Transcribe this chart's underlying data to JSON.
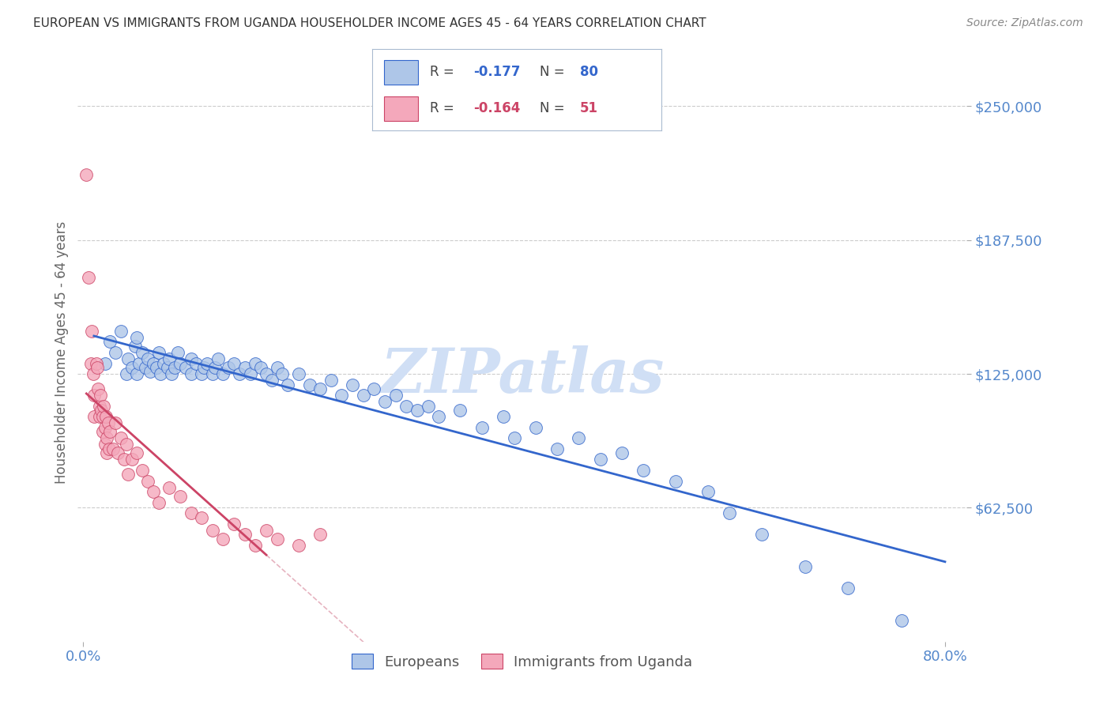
{
  "title": "EUROPEAN VS IMMIGRANTS FROM UGANDA HOUSEHOLDER INCOME AGES 45 - 64 YEARS CORRELATION CHART",
  "source": "Source: ZipAtlas.com",
  "ylabel": "Householder Income Ages 45 - 64 years",
  "ytick_labels": [
    "$62,500",
    "$125,000",
    "$187,500",
    "$250,000"
  ],
  "ytick_values": [
    62500,
    125000,
    187500,
    250000
  ],
  "ylim": [
    0,
    270000
  ],
  "xlim": [
    -0.005,
    0.82
  ],
  "legend_blue_R": "-0.177",
  "legend_blue_N": "80",
  "legend_pink_R": "-0.164",
  "legend_pink_N": "51",
  "blue_color": "#aec6e8",
  "pink_color": "#f4a8bb",
  "blue_line_color": "#3366cc",
  "pink_line_color": "#cc4466",
  "pink_dashed_color": "#e0a0b0",
  "watermark_color": "#d0dff5",
  "title_color": "#333333",
  "axis_label_color": "#5588cc",
  "ylabel_color": "#666666",
  "bg_color": "#ffffff",
  "grid_color": "#cccccc",
  "europeans_x": [
    0.02,
    0.025,
    0.03,
    0.035,
    0.04,
    0.042,
    0.045,
    0.048,
    0.05,
    0.05,
    0.052,
    0.055,
    0.058,
    0.06,
    0.062,
    0.065,
    0.068,
    0.07,
    0.072,
    0.075,
    0.078,
    0.08,
    0.082,
    0.085,
    0.088,
    0.09,
    0.095,
    0.1,
    0.1,
    0.105,
    0.11,
    0.112,
    0.115,
    0.12,
    0.122,
    0.125,
    0.13,
    0.135,
    0.14,
    0.145,
    0.15,
    0.155,
    0.16,
    0.165,
    0.17,
    0.175,
    0.18,
    0.185,
    0.19,
    0.2,
    0.21,
    0.22,
    0.23,
    0.24,
    0.25,
    0.26,
    0.27,
    0.28,
    0.29,
    0.3,
    0.31,
    0.32,
    0.33,
    0.35,
    0.37,
    0.39,
    0.4,
    0.42,
    0.44,
    0.46,
    0.48,
    0.5,
    0.52,
    0.55,
    0.58,
    0.6,
    0.63,
    0.67,
    0.71,
    0.76
  ],
  "europeans_y": [
    130000,
    140000,
    135000,
    145000,
    125000,
    132000,
    128000,
    138000,
    142000,
    125000,
    130000,
    135000,
    128000,
    132000,
    126000,
    130000,
    128000,
    135000,
    125000,
    130000,
    128000,
    132000,
    125000,
    128000,
    135000,
    130000,
    128000,
    132000,
    125000,
    130000,
    125000,
    128000,
    130000,
    125000,
    128000,
    132000,
    125000,
    128000,
    130000,
    125000,
    128000,
    125000,
    130000,
    128000,
    125000,
    122000,
    128000,
    125000,
    120000,
    125000,
    120000,
    118000,
    122000,
    115000,
    120000,
    115000,
    118000,
    112000,
    115000,
    110000,
    108000,
    110000,
    105000,
    108000,
    100000,
    105000,
    95000,
    100000,
    90000,
    95000,
    85000,
    88000,
    80000,
    75000,
    70000,
    60000,
    50000,
    35000,
    25000,
    10000
  ],
  "uganda_x": [
    0.003,
    0.005,
    0.007,
    0.008,
    0.009,
    0.01,
    0.01,
    0.012,
    0.013,
    0.014,
    0.015,
    0.015,
    0.016,
    0.017,
    0.018,
    0.018,
    0.019,
    0.02,
    0.02,
    0.021,
    0.022,
    0.022,
    0.023,
    0.024,
    0.025,
    0.028,
    0.03,
    0.032,
    0.035,
    0.038,
    0.04,
    0.042,
    0.045,
    0.05,
    0.055,
    0.06,
    0.065,
    0.07,
    0.08,
    0.09,
    0.1,
    0.11,
    0.12,
    0.13,
    0.14,
    0.15,
    0.16,
    0.17,
    0.18,
    0.2,
    0.22
  ],
  "uganda_y": [
    218000,
    170000,
    130000,
    145000,
    125000,
    105000,
    115000,
    130000,
    128000,
    118000,
    110000,
    105000,
    115000,
    108000,
    98000,
    105000,
    110000,
    92000,
    100000,
    105000,
    88000,
    95000,
    102000,
    90000,
    98000,
    90000,
    102000,
    88000,
    95000,
    85000,
    92000,
    78000,
    85000,
    88000,
    80000,
    75000,
    70000,
    65000,
    72000,
    68000,
    60000,
    58000,
    52000,
    48000,
    55000,
    50000,
    45000,
    52000,
    48000,
    45000,
    50000
  ]
}
